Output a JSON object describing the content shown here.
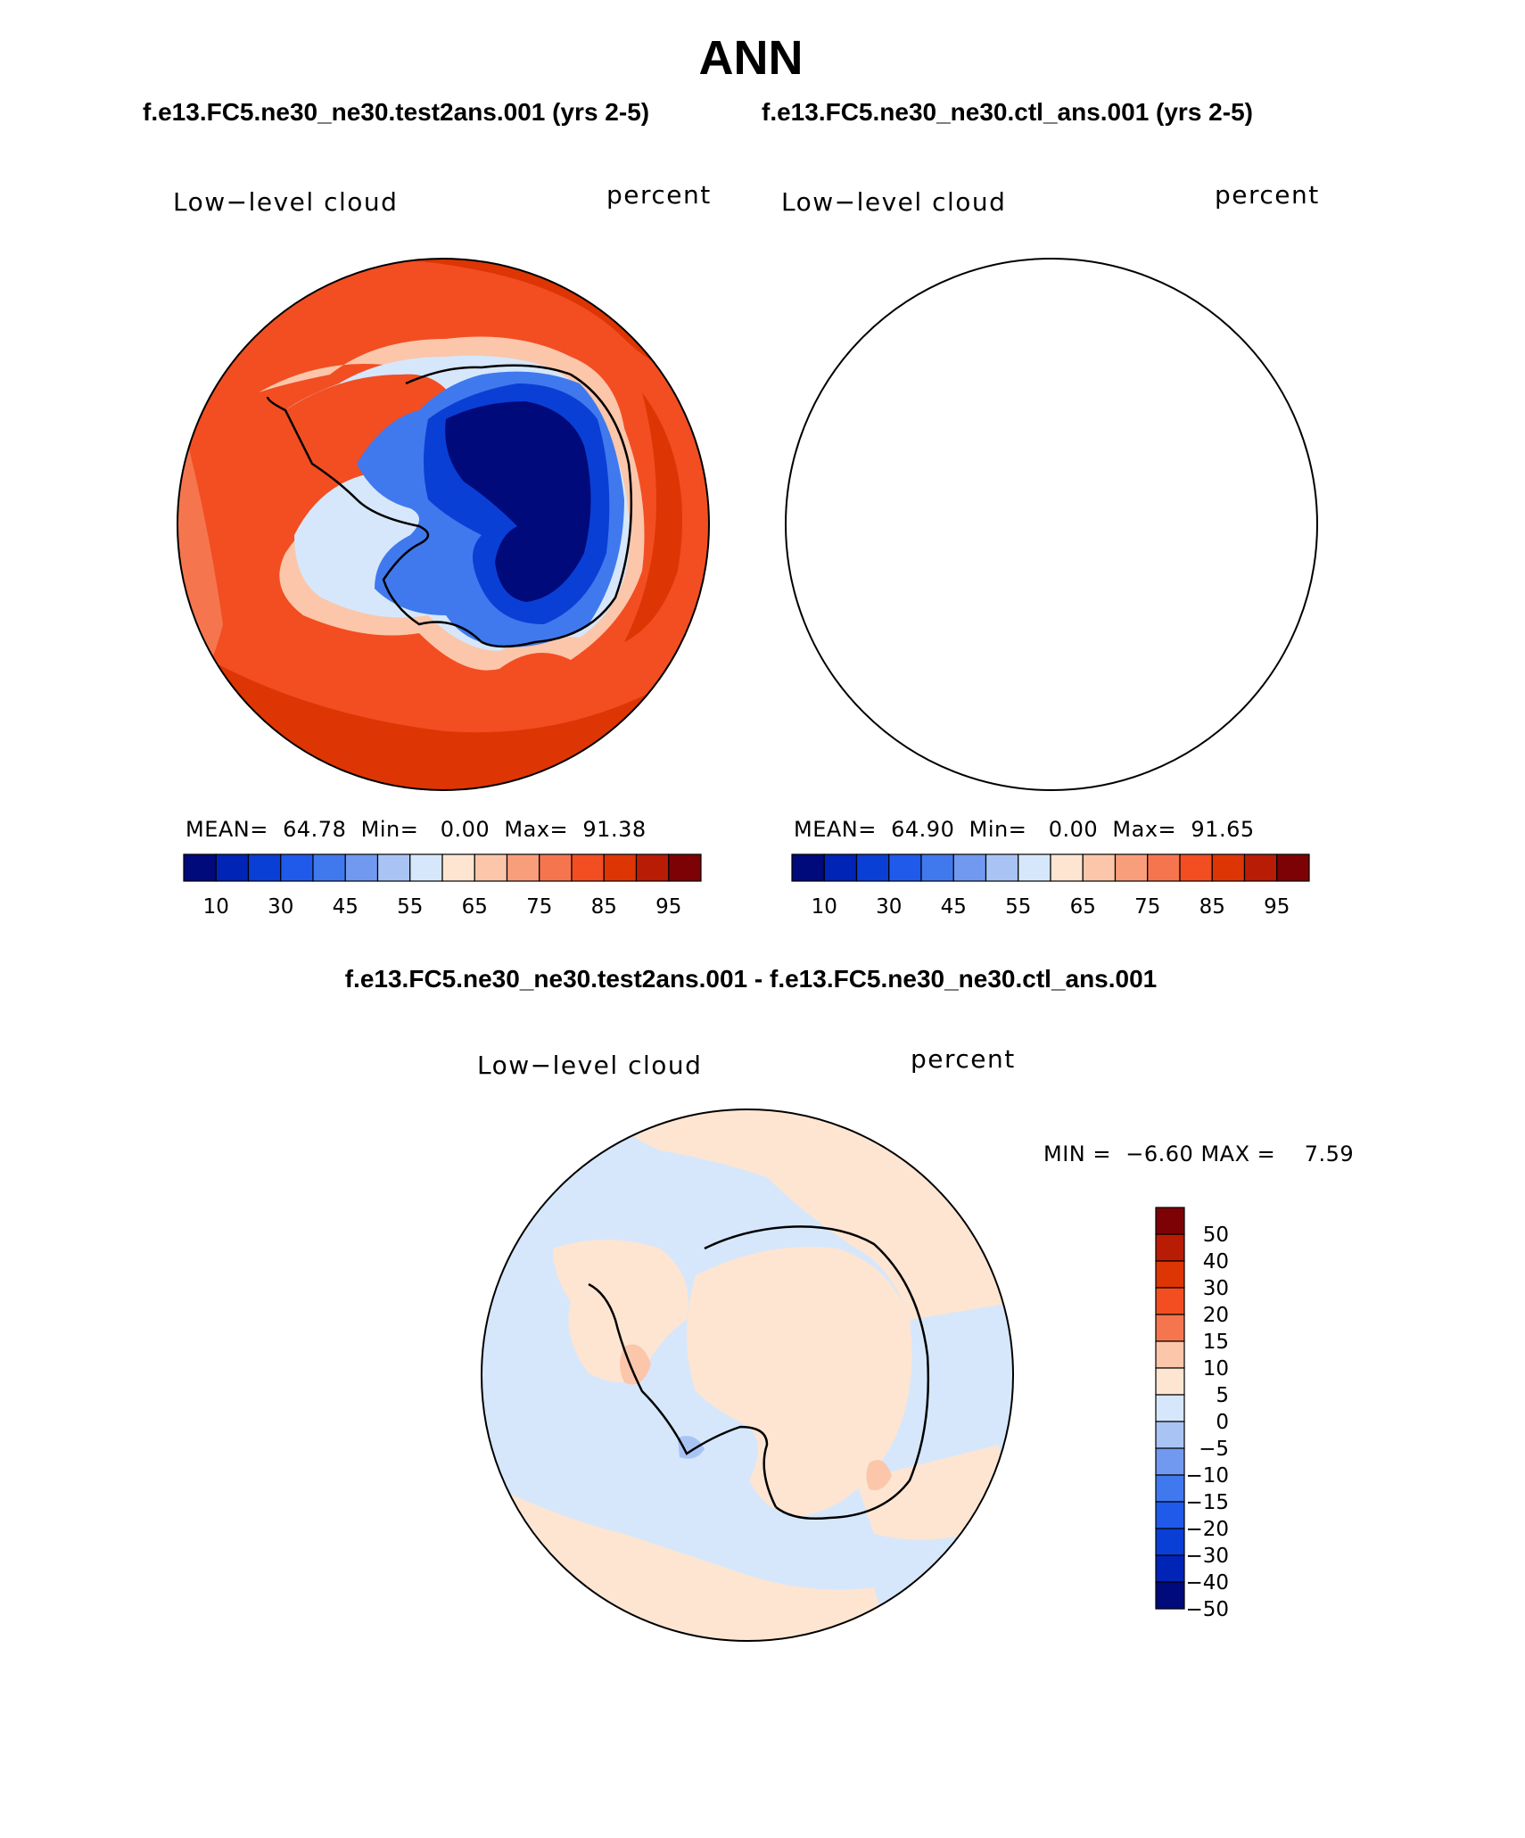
{
  "title": "ANN",
  "case_titles": {
    "test": "f.e13.FC5.ne30_ne30.test2ans.001 (yrs 2-5)",
    "control": "f.e13.FC5.ne30_ne30.ctl_ans.001 (yrs 2-5)",
    "difference": "f.e13.FC5.ne30_ne30.test2ans.001 - f.e13.FC5.ne30_ne30.ctl_ans.001"
  },
  "panels": [
    {
      "id": "test",
      "variable_label": "Low−level cloud",
      "units": "percent",
      "stats": {
        "mean_label": "MEAN=",
        "mean": "64.78",
        "min_label": "Min=",
        "min": "0.00",
        "max_label": "Max=",
        "max": "91.38"
      }
    },
    {
      "id": "control",
      "variable_label": "Low−level cloud",
      "units": "percent",
      "stats": {
        "mean_label": "MEAN=",
        "mean": "64.90",
        "min_label": "Min=",
        "min": "0.00",
        "max_label": "Max=",
        "max": "91.65"
      }
    },
    {
      "id": "difference",
      "variable_label": "Low−level cloud",
      "units": "percent",
      "stats": {
        "min_label": "MIN =",
        "min": "−6.60",
        "max_label": "MAX =",
        "max": "7.59"
      }
    }
  ],
  "colorbars": {
    "absolute": {
      "colors": [
        "#000a7a",
        "#0024b5",
        "#0a3fd6",
        "#1f5aeb",
        "#4079ee",
        "#7299f0",
        "#a9c4f4",
        "#d6e7fb",
        "#fde5d2",
        "#fbc6aa",
        "#f89e7a",
        "#f5764e",
        "#f24e22",
        "#de3504",
        "#b91c05",
        "#7c0205"
      ],
      "tick_labels": [
        "10",
        "30",
        "45",
        "55",
        "65",
        "75",
        "85",
        "95"
      ],
      "tick_after_box": [
        1,
        3,
        5,
        7,
        9,
        11,
        13,
        15
      ]
    },
    "difference": {
      "colors": [
        "#7c0205",
        "#b91c05",
        "#de3504",
        "#f24e22",
        "#f5764e",
        "#fbc6aa",
        "#fde5d2",
        "#d6e7fb",
        "#a9c4f4",
        "#7299f0",
        "#4079ee",
        "#1f5aeb",
        "#0a3fd6",
        "#0024b5",
        "#000a7a"
      ],
      "tick_labels": [
        "50",
        "40",
        "30",
        "20",
        "15",
        "10",
        "5",
        "0",
        "−5",
        "−10",
        "−15",
        "−20",
        "−30",
        "−40",
        "−50"
      ]
    }
  },
  "map_colors": {
    "ocean_outer": "#f24e22",
    "ocean_dark": "#de3504",
    "ocean_light": "#f5764e",
    "coast_pale": "#fbc6aa",
    "ice_edge": "#7299f0",
    "ice_mid": "#1f5aeb",
    "ice_core": "#000a7a",
    "diff_pos": "#fde5d2",
    "diff_neg": "#d6e7fb",
    "diff_strong_pos": "#fbc6aa",
    "diff_strong_neg": "#a9c4f4"
  }
}
